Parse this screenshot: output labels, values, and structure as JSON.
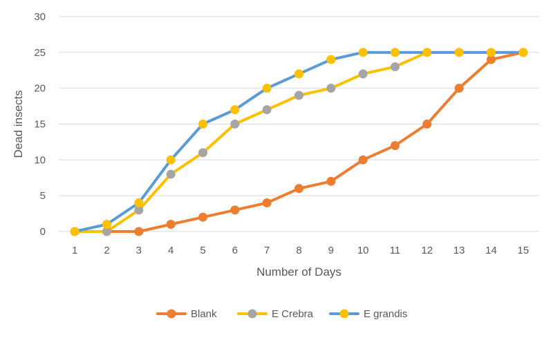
{
  "chart_data": {
    "type": "line",
    "title": "",
    "xlabel": "Number of Days",
    "ylabel": "Dead insects",
    "x": [
      1,
      2,
      3,
      4,
      5,
      6,
      7,
      8,
      9,
      10,
      11,
      12,
      13,
      14,
      15
    ],
    "ylim": [
      0,
      30
    ],
    "yticks": [
      0,
      5,
      10,
      15,
      20,
      25,
      30
    ],
    "grid": "horizontal",
    "legend_position": "bottom",
    "series": [
      {
        "name": "Blank",
        "color": "#ED7D31",
        "values": [
          0,
          0,
          0,
          1,
          2,
          3,
          4,
          6,
          7,
          10,
          12,
          15,
          20,
          24,
          25
        ]
      },
      {
        "name": "E Crebra",
        "color": "#FFC000",
        "marker_color": "#A5A5A5",
        "values": [
          0,
          0,
          3,
          8,
          11,
          15,
          17,
          19,
          20,
          22,
          23,
          25,
          25,
          25,
          25
        ]
      },
      {
        "name": "E grandis",
        "color": "#5B9BD5",
        "marker_color": "#FFC000",
        "values": [
          0,
          1,
          4,
          10,
          15,
          17,
          20,
          22,
          24,
          25,
          25,
          25,
          25,
          25,
          25
        ]
      }
    ],
    "legend_colors": {
      "Blank": {
        "line": "#ED7D31",
        "marker": "#ED7D31"
      },
      "E Crebra": {
        "line": "#FFC000",
        "marker": "#A5A5A5"
      },
      "E grandis": {
        "line": "#5B9BD5",
        "marker": "#FFC000"
      }
    },
    "gridline_color": "#D9D9D9"
  }
}
